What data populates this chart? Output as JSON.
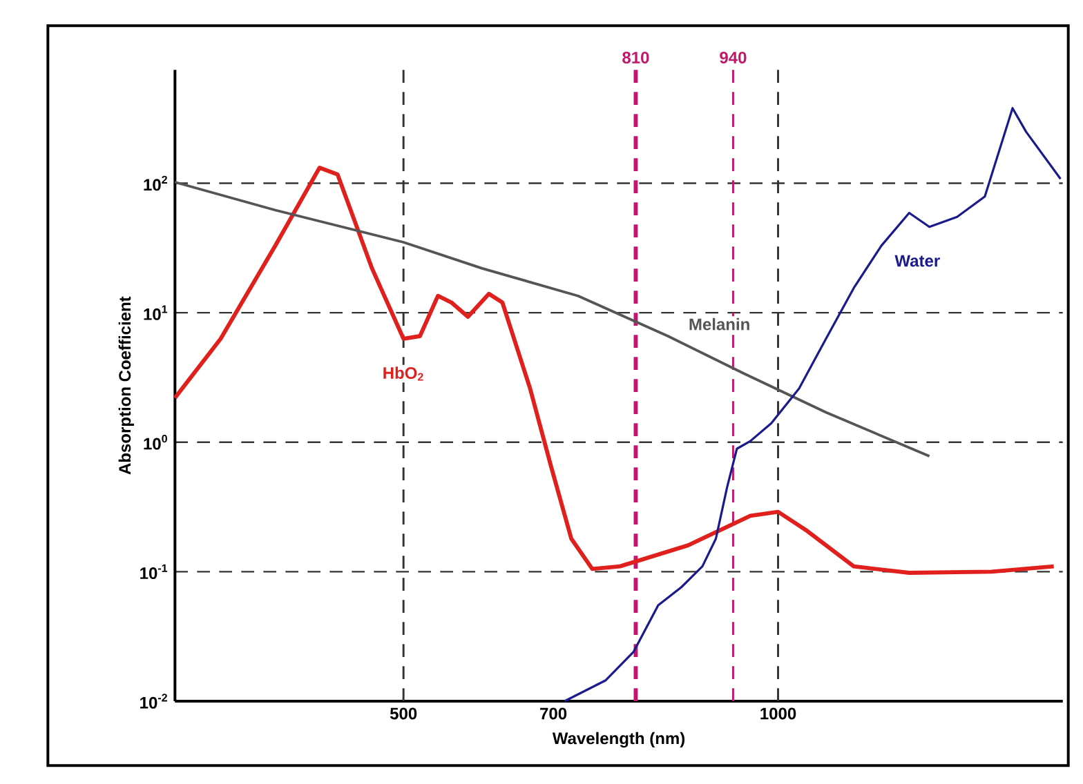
{
  "chart_data": {
    "type": "line",
    "xlabel": "Wavelength (nm)",
    "ylabel": "Absorption Coefficient",
    "xlim": [
      195,
      1380
    ],
    "xticks": [
      500,
      700,
      1000
    ],
    "ylim": [
      0.01,
      750
    ],
    "log": true,
    "yticks": [
      {
        "value": 0.01,
        "label": "10$^{-2}$"
      },
      {
        "value": 0.1,
        "label": "10$^{-1}$"
      },
      {
        "value": 1,
        "label": "10$^{0}$"
      },
      {
        "value": 10,
        "label": "10$^{1}$"
      },
      {
        "value": 100,
        "label": "10$^{2}$"
      }
    ],
    "grid": "y",
    "line_style": "solid",
    "marker": "none",
    "ref_lines": [
      {
        "axis": "x",
        "value": 500,
        "label": null,
        "color": "#333333",
        "line_style": "dashed"
      },
      {
        "axis": "x",
        "value": 1000,
        "label": null,
        "color": "#333333",
        "line_style": "dashed"
      },
      {
        "axis": "x",
        "value": 810,
        "label": "810",
        "color": "#c0186a",
        "line_style": "dashed"
      },
      {
        "axis": "x",
        "value": 940,
        "label": "940",
        "color": "#c0186a",
        "line_style": "dashed"
      }
    ],
    "series": [
      {
        "name": "HbO$_{2}$",
        "color": "#e0201c",
        "x": [
          195,
          256,
          329,
          388,
          412,
          458,
          500,
          522,
          546,
          564,
          586,
          614,
          632,
          669,
          697,
          724,
          752,
          789,
          880,
          963,
          1000,
          1037,
          1101,
          1175,
          1285,
          1368
        ],
        "values": [
          2.2,
          6.3,
          33,
          132,
          117,
          22,
          6.3,
          6.6,
          13.5,
          12,
          9.3,
          14,
          12,
          2.6,
          0.65,
          0.18,
          0.105,
          0.11,
          0.16,
          0.27,
          0.29,
          0.21,
          0.11,
          0.098,
          0.1,
          0.11
        ]
      },
      {
        "name": "Melanin",
        "color": "#555555",
        "x": [
          195,
          329,
          500,
          605,
          733,
          853,
          954,
          1064,
          1202
        ],
        "values": [
          102,
          62,
          35,
          22,
          13.5,
          6.6,
          3.4,
          1.7,
          0.78
        ]
      },
      {
        "name": "Water",
        "color": "#1a1a8c",
        "x": [
          715,
          770,
          807,
          840,
          871,
          899,
          917,
          932,
          945,
          963,
          991,
          1028,
          1064,
          1101,
          1138,
          1175,
          1202,
          1239,
          1276,
          1313,
          1331,
          1377
        ],
        "values": [
          0.01,
          0.0145,
          0.024,
          0.055,
          0.076,
          0.11,
          0.18,
          0.45,
          0.89,
          1.02,
          1.4,
          2.6,
          6.3,
          15.5,
          33,
          59,
          46,
          55,
          79,
          380,
          250,
          108
        ]
      }
    ]
  }
}
